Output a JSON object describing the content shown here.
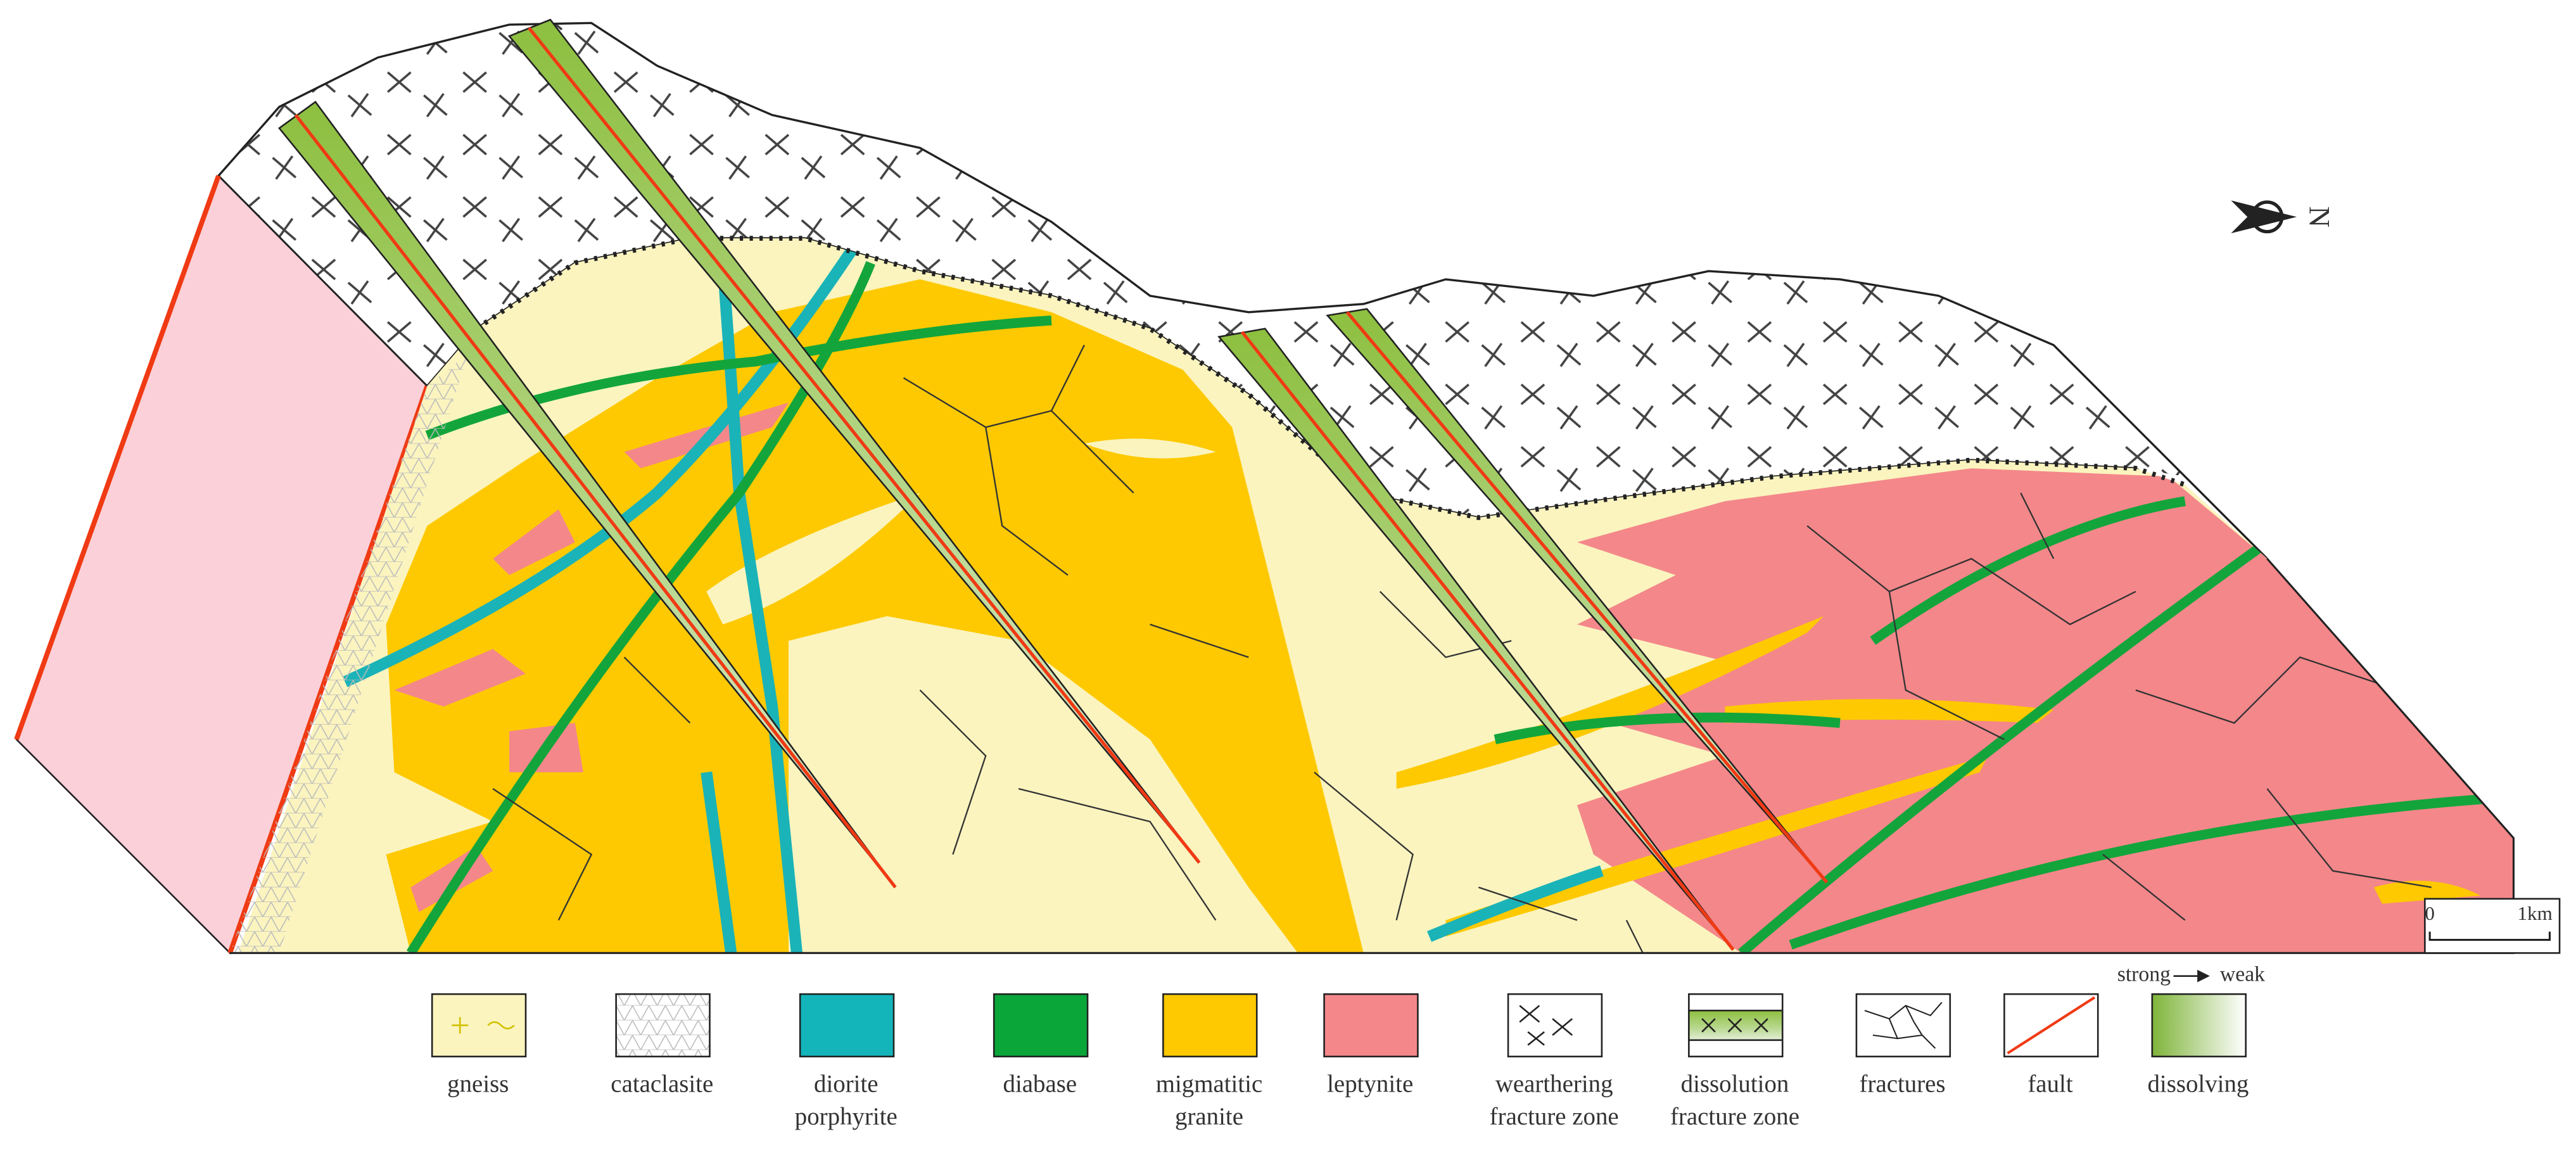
{
  "diagram": {
    "compass": "N",
    "scale_bar": {
      "start": "0",
      "end": "1km"
    }
  },
  "legend": {
    "items": [
      {
        "label_lines": [
          "gneiss"
        ]
      },
      {
        "label_lines": [
          "cataclasite"
        ]
      },
      {
        "label_lines": [
          "diorite",
          "porphyrite"
        ]
      },
      {
        "label_lines": [
          "diabase"
        ]
      },
      {
        "label_lines": [
          "migmatitic",
          "granite"
        ]
      },
      {
        "label_lines": [
          "leptynite"
        ]
      },
      {
        "label_lines": [
          "wearthering",
          "fracture zone"
        ]
      },
      {
        "label_lines": [
          "dissolution",
          "fracture  zone"
        ]
      },
      {
        "label_lines": [
          "fractures"
        ]
      },
      {
        "label_lines": [
          "fault"
        ]
      },
      {
        "label_lines": [
          "dissolving"
        ]
      }
    ],
    "gradient": {
      "start": "strong",
      "end": "weak"
    }
  }
}
